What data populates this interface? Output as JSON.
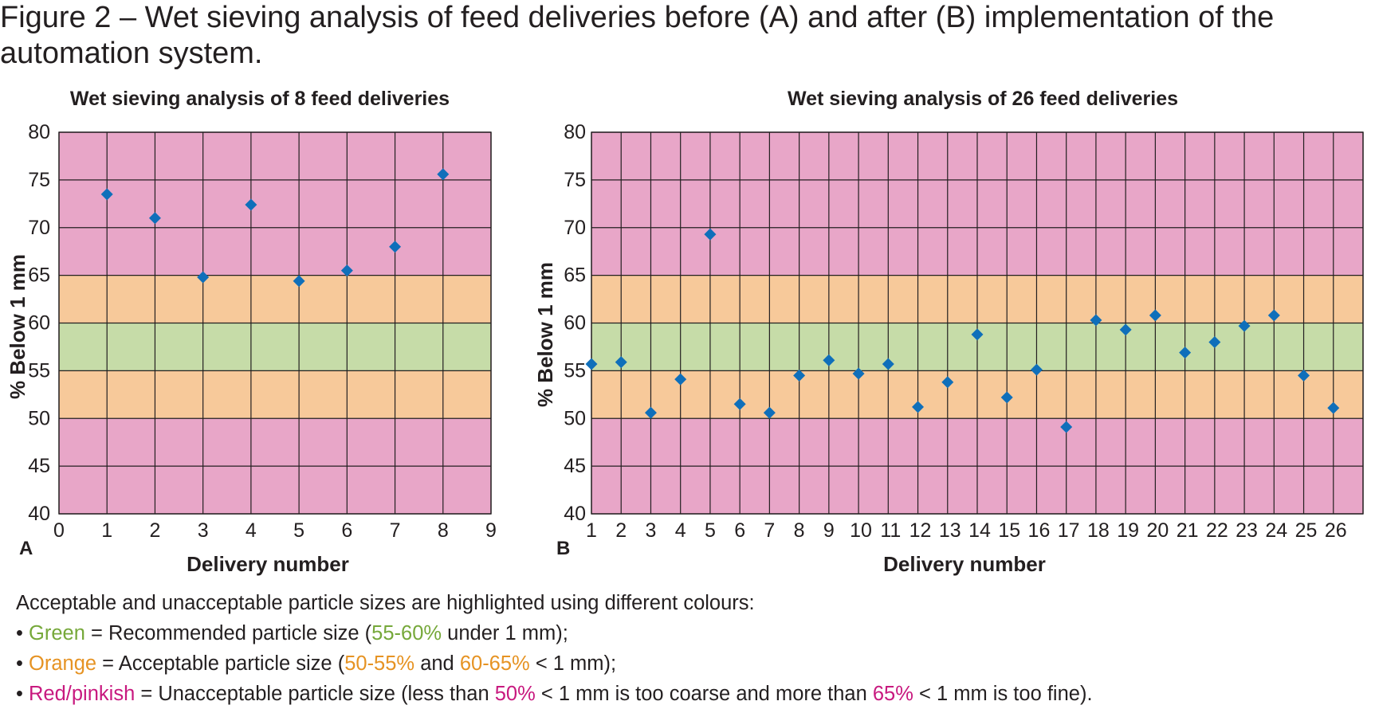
{
  "figure": {
    "title": "Figure 2 – Wet sieving analysis of feed deliveries before (A) and after (B) implementation of the automation system."
  },
  "colors": {
    "pink_band": "#e8a6c8",
    "orange_band": "#f7c99a",
    "green_band": "#c6dca8",
    "marker": "#0f6fba",
    "grid": "#231f20"
  },
  "chart_data": [
    {
      "type": "scatter",
      "panel": "A",
      "title": "Wet sieving analysis of 8 feed deliveries",
      "xlabel": "Delivery number",
      "ylabel": "% Below 1 mm",
      "xlim": [
        0,
        9
      ],
      "ylim": [
        40,
        80
      ],
      "x_ticks": [
        "0",
        "1",
        "2",
        "3",
        "4",
        "5",
        "6",
        "7",
        "8",
        "9"
      ],
      "y_ticks": [
        "40",
        "45",
        "50",
        "55",
        "60",
        "65",
        "70",
        "75",
        "80"
      ],
      "grid": true,
      "bands": [
        {
          "from": 40,
          "to": 50,
          "color": "pink"
        },
        {
          "from": 50,
          "to": 55,
          "color": "orange"
        },
        {
          "from": 55,
          "to": 60,
          "color": "green"
        },
        {
          "from": 60,
          "to": 65,
          "color": "orange"
        },
        {
          "from": 65,
          "to": 80,
          "color": "pink"
        }
      ],
      "x": [
        1,
        2,
        3,
        4,
        5,
        6,
        7,
        8
      ],
      "y": [
        73.5,
        71.0,
        64.8,
        72.4,
        64.4,
        65.5,
        68.0,
        75.6
      ]
    },
    {
      "type": "scatter",
      "panel": "B",
      "title": "Wet sieving analysis of 26 feed deliveries",
      "xlabel": "Delivery number",
      "ylabel": "% Below 1 mm",
      "xlim": [
        1,
        26
      ],
      "ylim": [
        40,
        80
      ],
      "x_ticks": [
        "1",
        "2",
        "3",
        "4",
        "5",
        "6",
        "7",
        "8",
        "9",
        "10",
        "11",
        "12",
        "13",
        "14",
        "15",
        "16",
        "17",
        "18",
        "19",
        "20",
        "21",
        "22",
        "23",
        "24",
        "25",
        "26"
      ],
      "y_ticks": [
        "40",
        "45",
        "50",
        "55",
        "60",
        "65",
        "70",
        "75",
        "80"
      ],
      "grid": true,
      "bands": [
        {
          "from": 40,
          "to": 50,
          "color": "pink"
        },
        {
          "from": 50,
          "to": 55,
          "color": "orange"
        },
        {
          "from": 55,
          "to": 60,
          "color": "green"
        },
        {
          "from": 60,
          "to": 65,
          "color": "orange"
        },
        {
          "from": 65,
          "to": 80,
          "color": "pink"
        }
      ],
      "x": [
        1,
        2,
        3,
        4,
        5,
        6,
        7,
        8,
        9,
        10,
        11,
        12,
        13,
        14,
        15,
        16,
        17,
        18,
        19,
        20,
        21,
        22,
        23,
        24,
        25,
        26
      ],
      "y": [
        55.7,
        55.9,
        50.6,
        54.1,
        69.3,
        51.5,
        50.6,
        54.5,
        56.1,
        54.7,
        55.7,
        51.2,
        53.8,
        58.8,
        52.2,
        55.1,
        49.1,
        60.3,
        59.3,
        60.8,
        56.9,
        58.0,
        59.7,
        60.8,
        54.5,
        51.1
      ]
    }
  ],
  "legend": {
    "intro": "Acceptable and unacceptable particle sizes are highlighted using different colours:",
    "bullet": "• ",
    "green": {
      "name": "Green",
      "pre": " = Recommended particle size (",
      "range": "55-60%",
      "post": " under 1 mm);"
    },
    "orange": {
      "name": "Orange",
      "pre": " = Acceptable particle size (",
      "range1": "50-55%",
      "mid": " and ",
      "range2": "60-65%",
      "post": " < 1 mm);"
    },
    "pink": {
      "name": "Red/pinkish",
      "pre": " = Unacceptable particle size (less than ",
      "val1": "50%",
      "mid": " < 1 mm is too coarse and more than ",
      "val2": "65%",
      "post": " < 1 mm is too fine)."
    }
  }
}
